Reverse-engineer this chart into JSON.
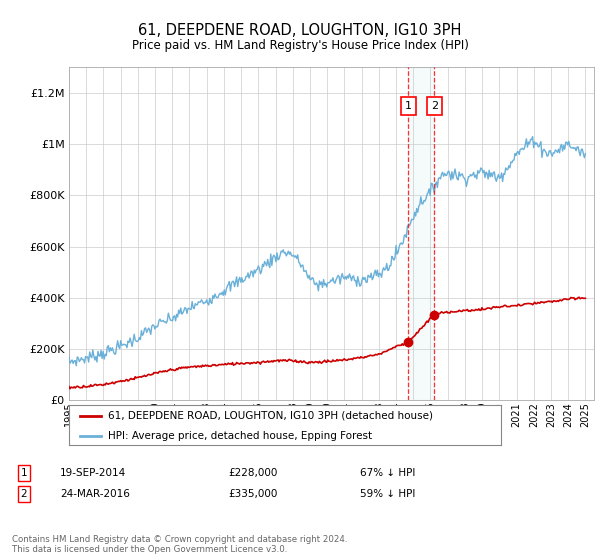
{
  "title": "61, DEEPDENE ROAD, LOUGHTON, IG10 3PH",
  "subtitle": "Price paid vs. HM Land Registry's House Price Index (HPI)",
  "legend_line1": "61, DEEPDENE ROAD, LOUGHTON, IG10 3PH (detached house)",
  "legend_line2": "HPI: Average price, detached house, Epping Forest",
  "transaction1_date": "19-SEP-2014",
  "transaction1_price": 228000,
  "transaction1_label": "67% ↓ HPI",
  "transaction2_date": "24-MAR-2016",
  "transaction2_price": 335000,
  "transaction2_label": "59% ↓ HPI",
  "footnote": "Contains HM Land Registry data © Crown copyright and database right 2024.\nThis data is licensed under the Open Government Licence v3.0.",
  "hpi_color": "#6ab0d8",
  "price_color": "#cc0000",
  "background_color": "#ffffff",
  "grid_color": "#cccccc",
  "marker1_x": 2014.72,
  "marker2_x": 2016.23,
  "xlim": [
    1995,
    2025.5
  ],
  "ylim": [
    0,
    1300000
  ],
  "yticks": [
    0,
    200000,
    400000,
    600000,
    800000,
    1000000,
    1200000
  ],
  "ytick_labels": [
    "£0",
    "£200K",
    "£400K",
    "£600K",
    "£800K",
    "£1M",
    "£1.2M"
  ]
}
